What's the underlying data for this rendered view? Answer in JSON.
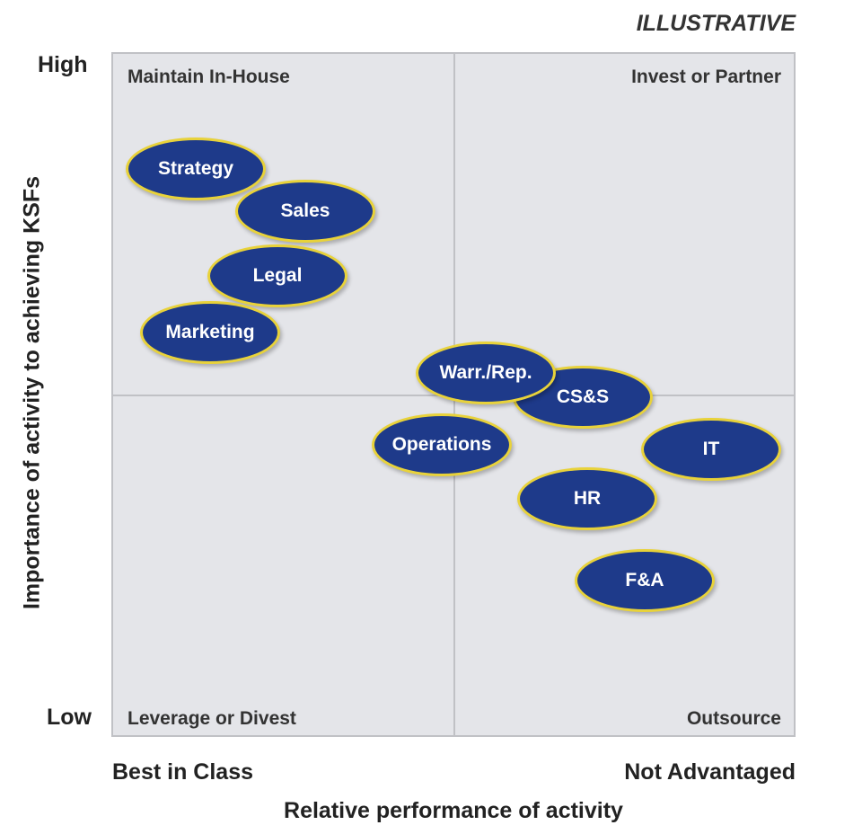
{
  "stamp": "ILLUSTRATIVE",
  "quadrants": {
    "top_left": "Maintain In-House",
    "top_right": "Invest or Partner",
    "bottom_left": "Leverage or Divest",
    "bottom_right": "Outsource"
  },
  "y_axis": {
    "title": "Importance of activity to achieving KSFs",
    "high": "High",
    "low": "Low"
  },
  "x_axis": {
    "title": "Relative performance of activity",
    "left": "Best in Class",
    "right": "Not Advantaged"
  },
  "colors": {
    "bubble_fill": "#1e3a8a",
    "bubble_border": "#e8d23a",
    "matrix_bg": "#e4e5e9"
  },
  "activities": [
    {
      "label": "Strategy"
    },
    {
      "label": "Sales"
    },
    {
      "label": "Legal"
    },
    {
      "label": "Marketing"
    },
    {
      "label": "CS&S"
    },
    {
      "label": "Warr./Rep."
    },
    {
      "label": "Operations"
    },
    {
      "label": "IT"
    },
    {
      "label": "HR"
    },
    {
      "label": "F&A"
    }
  ]
}
